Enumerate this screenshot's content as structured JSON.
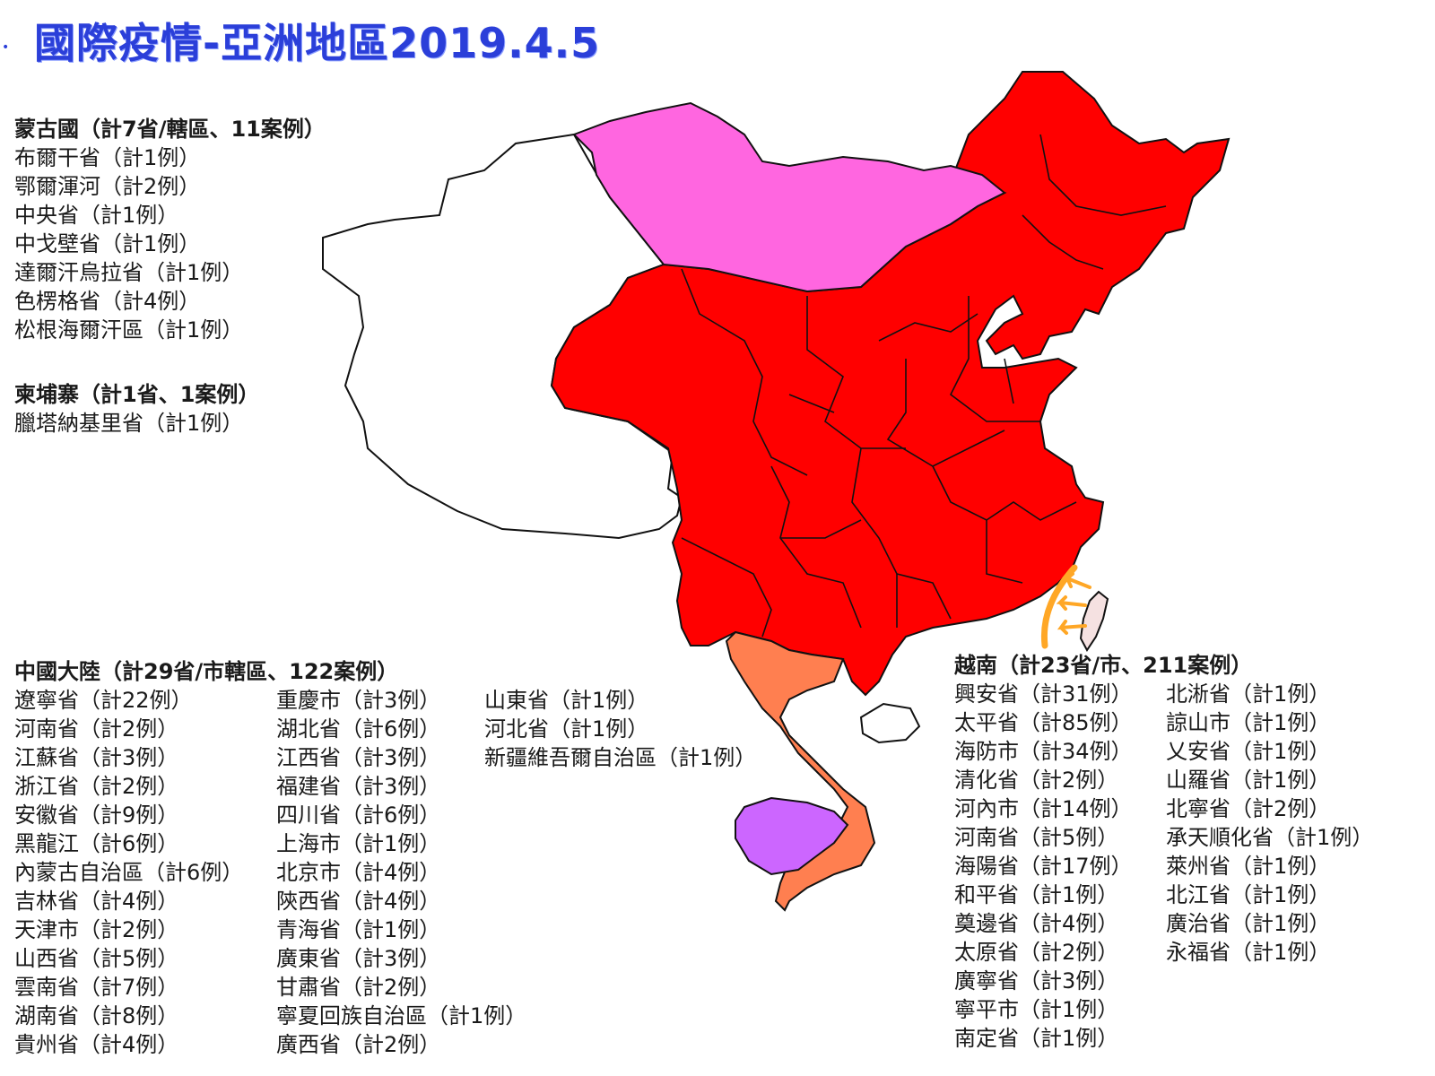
{
  "title": "國際疫情-亞洲地區2019.4.5",
  "colors": {
    "title": "#2b3fd9",
    "china": "#ff0000",
    "mongolia": "#ff66e0",
    "vietnam": "#ff7f50",
    "cambodia": "#cc66ff",
    "taiwan": "#f5e1e1",
    "arrows": "#ffa726",
    "unaffected": "#ffffff"
  },
  "mongolia": {
    "header": "蒙古國（計7省/轄區、11案例）",
    "items": [
      "布爾干省（計1例）",
      "鄂爾渾河（計2例）",
      "中央省（計1例）",
      "中戈壁省（計1例）",
      "達爾汗烏拉省（計1例）",
      "色楞格省（計4例）",
      "松根海爾汗區（計1例）"
    ]
  },
  "cambodia": {
    "header": "柬埔寨（計1省、1案例）",
    "items": [
      "臘塔納基里省（計1例）"
    ]
  },
  "china": {
    "header": "中國大陸（計29省/市轄區、122案例）",
    "col1": [
      "遼寧省（計22例）",
      "河南省（計2例）",
      "江蘇省（計3例）",
      "浙江省（計2例）",
      "安徽省（計9例）",
      "黑龍江（計6例）",
      "內蒙古自治區（計6例）",
      "吉林省（計4例）",
      "天津市（計2例）",
      "山西省（計5例）",
      "雲南省（計7例）",
      "湖南省（計8例）",
      "貴州省（計4例）"
    ],
    "col2": [
      "重慶市（計3例）",
      "湖北省（計6例）",
      "江西省（計3例）",
      "福建省（計3例）",
      "四川省（計6例）",
      "上海市（計1例）",
      "北京市（計4例）",
      "陝西省（計4例）",
      "青海省（計1例）",
      "廣東省（計3例）",
      "甘肅省（計2例）",
      "寧夏回族自治區（計1例）",
      "廣西省（計2例）"
    ],
    "col3": [
      "山東省（計1例）",
      "河北省（計1例）",
      "新疆維吾爾自治區（計1例）"
    ]
  },
  "vietnam": {
    "header": "越南（計23省/市、211案例）",
    "col1": [
      "興安省（計31例）",
      "太平省（計85例）",
      "海防市（計34例）",
      "清化省（計2例）",
      "河內市（計14例）",
      "河南省（計5例）",
      "海陽省（計17例）",
      "和平省（計1例）",
      "奠邊省（計4例）",
      "太原省（計2例）",
      "廣寧省（計3例）",
      "寧平市（計1例）",
      "南定省（計1例）"
    ],
    "col2": [
      "北淅省（計1例）",
      "諒山市（計1例）",
      "乂安省（計1例）",
      "山羅省（計1例）",
      "北寧省（計2例）",
      "承天順化省（計1例）",
      "萊州省（計1例）",
      "北江省（計1例）",
      "廣治省（計1例）",
      "永福省（計1例）"
    ]
  }
}
